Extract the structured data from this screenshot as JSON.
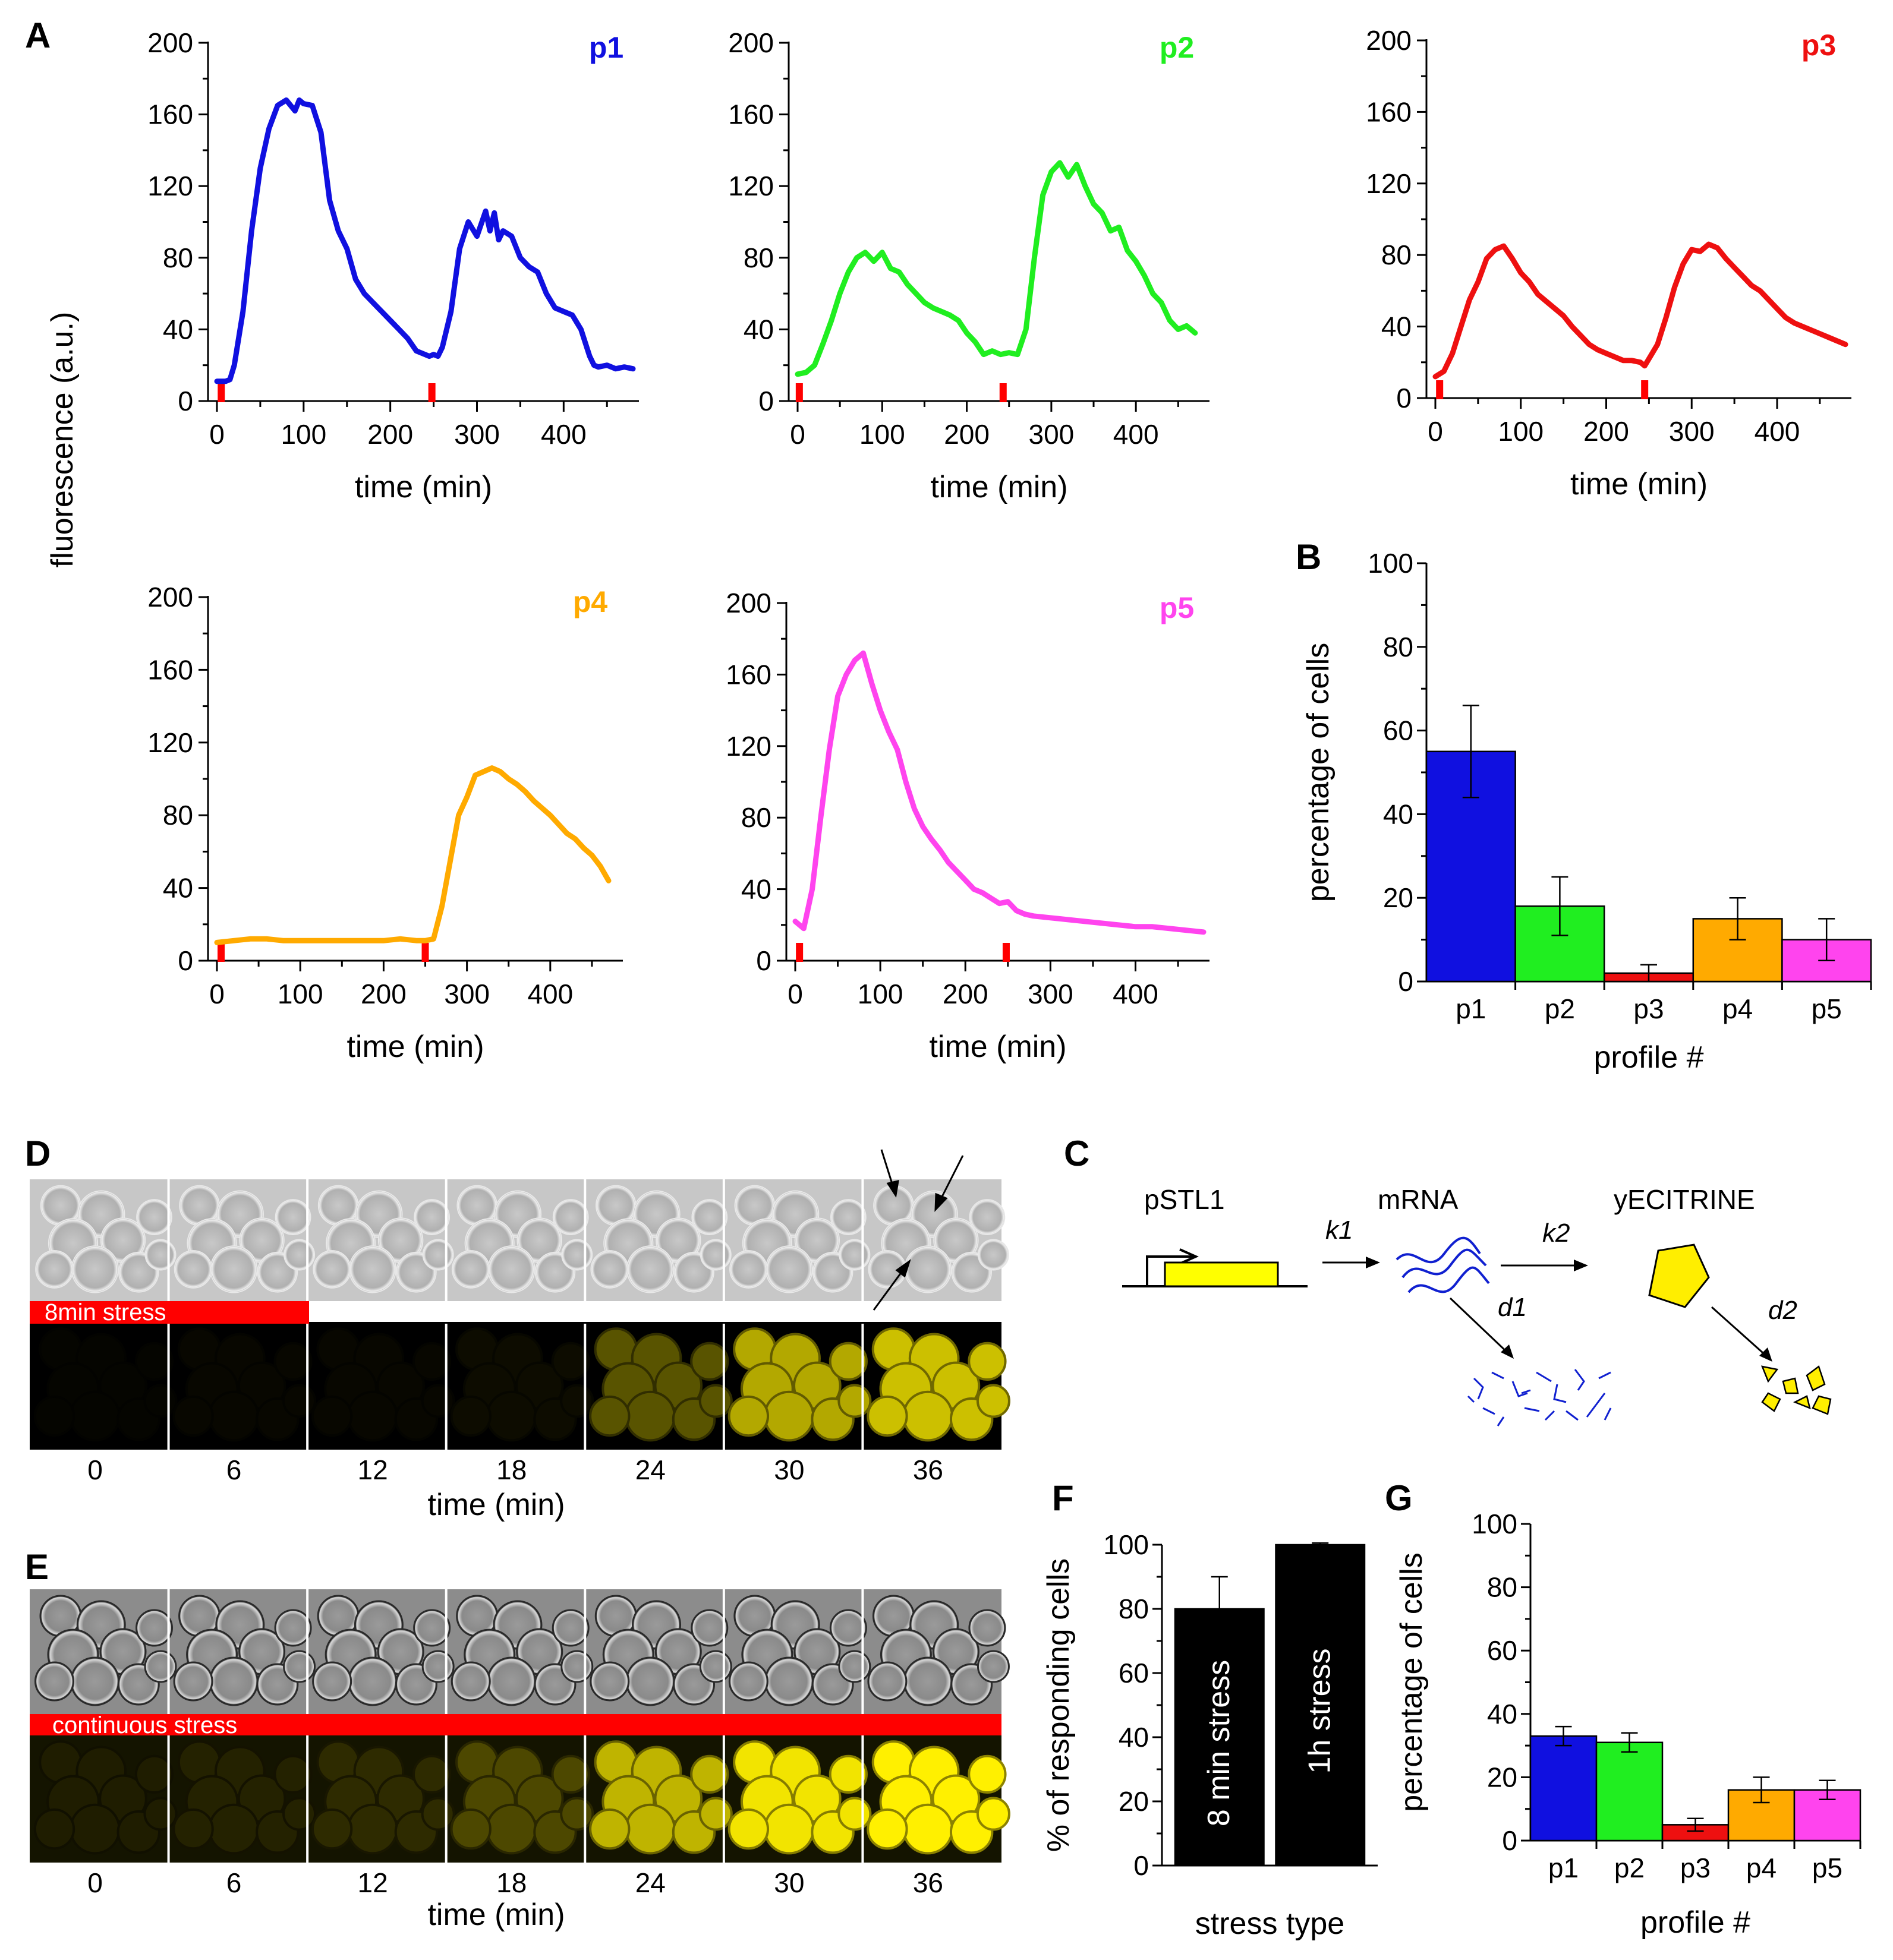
{
  "panel_labels": {
    "A": "A",
    "B": "B",
    "C": "C",
    "D": "D",
    "E": "E",
    "F": "F",
    "G": "G"
  },
  "shared_ylabel": "fluorescence (a.u.)",
  "chart_data": [
    {
      "id": "p1",
      "type": "line",
      "panel": "A",
      "label": "p1",
      "color": "#1010e0",
      "xlabel": "time (min)",
      "xlim": [
        -5,
        480
      ],
      "ylim": [
        0,
        200
      ],
      "xticks": [
        0,
        100,
        200,
        300,
        400
      ],
      "yticks": [
        0,
        40,
        80,
        120,
        160,
        200
      ],
      "stress_marks_min": [
        5,
        248
      ],
      "x": [
        0,
        10,
        15,
        20,
        30,
        40,
        50,
        60,
        70,
        80,
        90,
        95,
        100,
        110,
        120,
        130,
        140,
        150,
        160,
        170,
        180,
        190,
        200,
        210,
        220,
        230,
        240,
        245,
        250,
        255,
        260,
        270,
        280,
        290,
        300,
        310,
        315,
        320,
        325,
        330,
        340,
        350,
        360,
        370,
        380,
        390,
        400,
        410,
        420,
        430,
        435,
        440,
        450,
        460,
        470,
        480
      ],
      "y": [
        11,
        11,
        12,
        20,
        50,
        95,
        130,
        152,
        165,
        168,
        162,
        168,
        166,
        165,
        150,
        112,
        95,
        85,
        68,
        60,
        55,
        50,
        45,
        40,
        35,
        28,
        26,
        25,
        26,
        25,
        30,
        50,
        85,
        100,
        92,
        106,
        95,
        105,
        90,
        95,
        92,
        80,
        75,
        72,
        60,
        52,
        50,
        48,
        40,
        25,
        20,
        19,
        20,
        18,
        19,
        18
      ]
    },
    {
      "id": "p2",
      "type": "line",
      "panel": "A",
      "label": "p2",
      "color": "#20ee20",
      "xlabel": "time (min)",
      "xlim": [
        -5,
        480
      ],
      "ylim": [
        0,
        200
      ],
      "xticks": [
        0,
        100,
        200,
        300,
        400
      ],
      "yticks": [
        0,
        40,
        80,
        120,
        160,
        200
      ],
      "stress_marks_min": [
        2,
        243
      ],
      "x": [
        0,
        10,
        20,
        30,
        40,
        50,
        60,
        70,
        80,
        90,
        100,
        110,
        120,
        130,
        140,
        150,
        160,
        170,
        180,
        190,
        200,
        210,
        220,
        230,
        240,
        250,
        260,
        270,
        280,
        290,
        300,
        310,
        320,
        330,
        340,
        350,
        360,
        370,
        380,
        390,
        400,
        410,
        420,
        430,
        440,
        450,
        460,
        470
      ],
      "y": [
        15,
        16,
        20,
        32,
        45,
        60,
        72,
        80,
        83,
        78,
        83,
        74,
        72,
        65,
        60,
        55,
        52,
        50,
        48,
        45,
        38,
        33,
        26,
        28,
        26,
        27,
        26,
        40,
        80,
        115,
        128,
        133,
        125,
        132,
        120,
        110,
        105,
        95,
        97,
        84,
        78,
        70,
        60,
        55,
        45,
        40,
        42,
        38
      ]
    },
    {
      "id": "p3",
      "type": "line",
      "panel": "A",
      "label": "p3",
      "color": "#ee1010",
      "xlabel": "time (min)",
      "xlim": [
        -5,
        480
      ],
      "ylim": [
        0,
        200
      ],
      "xticks": [
        0,
        100,
        200,
        300,
        400
      ],
      "yticks": [
        0,
        40,
        80,
        120,
        160,
        200
      ],
      "stress_marks_min": [
        5,
        245
      ],
      "x": [
        0,
        10,
        20,
        30,
        40,
        50,
        60,
        70,
        80,
        90,
        100,
        110,
        120,
        130,
        140,
        150,
        160,
        170,
        180,
        190,
        200,
        210,
        220,
        230,
        240,
        245,
        250,
        260,
        270,
        280,
        290,
        300,
        310,
        320,
        330,
        340,
        350,
        360,
        370,
        380,
        390,
        400,
        410,
        420,
        430,
        440,
        450,
        460,
        470,
        480
      ],
      "y": [
        12,
        15,
        25,
        40,
        55,
        65,
        78,
        83,
        85,
        78,
        70,
        65,
        58,
        54,
        50,
        46,
        40,
        35,
        30,
        27,
        25,
        23,
        21,
        21,
        20,
        18,
        22,
        30,
        45,
        62,
        75,
        83,
        82,
        86,
        84,
        78,
        73,
        68,
        63,
        60,
        55,
        50,
        45,
        42,
        40,
        38,
        36,
        34,
        32,
        30
      ]
    },
    {
      "id": "p4",
      "type": "line",
      "panel": "A",
      "label": "p4",
      "color": "#ffaa00",
      "xlabel": "time (min)",
      "xlim": [
        -5,
        480
      ],
      "ylim": [
        0,
        200
      ],
      "xticks": [
        0,
        100,
        200,
        300,
        400
      ],
      "yticks": [
        0,
        40,
        80,
        120,
        160,
        200
      ],
      "stress_marks_min": [
        5,
        250
      ],
      "x": [
        0,
        20,
        40,
        60,
        80,
        100,
        120,
        140,
        160,
        180,
        200,
        220,
        240,
        250,
        260,
        270,
        280,
        290,
        300,
        310,
        320,
        330,
        340,
        350,
        360,
        370,
        380,
        390,
        400,
        410,
        420,
        430,
        440,
        450,
        460,
        470
      ],
      "y": [
        10,
        11,
        12,
        12,
        11,
        11,
        11,
        11,
        11,
        11,
        11,
        12,
        11,
        11,
        12,
        30,
        55,
        80,
        90,
        102,
        104,
        106,
        104,
        100,
        97,
        93,
        88,
        84,
        80,
        75,
        70,
        67,
        62,
        58,
        52,
        44
      ]
    },
    {
      "id": "p5",
      "type": "line",
      "panel": "A",
      "label": "p5",
      "color": "#ff44ee",
      "xlabel": "time (min)",
      "xlim": [
        -5,
        480
      ],
      "ylim": [
        0,
        200
      ],
      "xticks": [
        0,
        100,
        200,
        300,
        400
      ],
      "yticks": [
        0,
        40,
        80,
        120,
        160,
        200
      ],
      "stress_marks_min": [
        5,
        248
      ],
      "x": [
        0,
        10,
        20,
        30,
        40,
        50,
        60,
        70,
        80,
        90,
        100,
        110,
        120,
        130,
        140,
        150,
        160,
        170,
        180,
        190,
        200,
        210,
        220,
        230,
        240,
        250,
        260,
        270,
        280,
        300,
        320,
        340,
        360,
        380,
        400,
        420,
        440,
        460,
        480
      ],
      "y": [
        22,
        18,
        40,
        80,
        118,
        148,
        160,
        168,
        172,
        155,
        140,
        128,
        118,
        100,
        85,
        75,
        68,
        62,
        55,
        50,
        45,
        40,
        38,
        35,
        32,
        33,
        28,
        26,
        25,
        24,
        23,
        22,
        21,
        20,
        19,
        19,
        18,
        17,
        16
      ]
    },
    {
      "id": "B",
      "type": "bar",
      "panel": "B",
      "categories": [
        "p1",
        "p2",
        "p3",
        "p4",
        "p5"
      ],
      "values": [
        55,
        18,
        2,
        15,
        10
      ],
      "errors": [
        11,
        7,
        2,
        5,
        5
      ],
      "colors": [
        "#1010e0",
        "#20ee20",
        "#ee1010",
        "#ffaa00",
        "#ff44ee"
      ],
      "ylabel": "percentage of cells",
      "xlabel": "profile #",
      "ylim": [
        0,
        100
      ],
      "yticks": [
        0,
        20,
        40,
        60,
        80,
        100
      ]
    },
    {
      "id": "F",
      "type": "bar",
      "panel": "F",
      "categories": [
        "8 min stress",
        "1h stress"
      ],
      "values": [
        80,
        100
      ],
      "errors": [
        10,
        0.5
      ],
      "colors": [
        "#000000",
        "#000000"
      ],
      "ylabel": "% of responding cells",
      "xlabel": "stress type",
      "ylim": [
        0,
        100
      ],
      "yticks": [
        0,
        20,
        40,
        60,
        80,
        100
      ]
    },
    {
      "id": "G",
      "type": "bar",
      "panel": "G",
      "categories": [
        "p1",
        "p2",
        "p3",
        "p4",
        "p5"
      ],
      "values": [
        33,
        31,
        5,
        16,
        16
      ],
      "errors": [
        3,
        3,
        2,
        4,
        3
      ],
      "colors": [
        "#1010e0",
        "#20ee20",
        "#ee1010",
        "#ffaa00",
        "#ff44ee"
      ],
      "ylabel": "percentage of cells",
      "xlabel": "profile #",
      "ylim": [
        0,
        100
      ],
      "yticks": [
        0,
        20,
        40,
        60,
        80,
        100
      ]
    }
  ],
  "panel_C": {
    "promoter": "pSTL1",
    "mrna": "mRNA",
    "protein": "yECITRINE",
    "k1": "k1",
    "k2": "k2",
    "d1": "d1",
    "d2": "d2"
  },
  "panel_D": {
    "stress_label": "8min stress",
    "frame_times": [
      "0",
      "6",
      "12",
      "18",
      "24",
      "30",
      "36"
    ],
    "fluorescence_levels": [
      0.02,
      0.03,
      0.03,
      0.05,
      0.35,
      0.7,
      0.8
    ],
    "xlabel": "time (min)"
  },
  "panel_E": {
    "stress_label": "continuous stress",
    "frame_times": [
      "0",
      "6",
      "12",
      "18",
      "24",
      "30",
      "36"
    ],
    "fluorescence_levels": [
      0.12,
      0.14,
      0.18,
      0.3,
      0.75,
      0.95,
      1.0
    ],
    "xlabel": "time (min)"
  }
}
